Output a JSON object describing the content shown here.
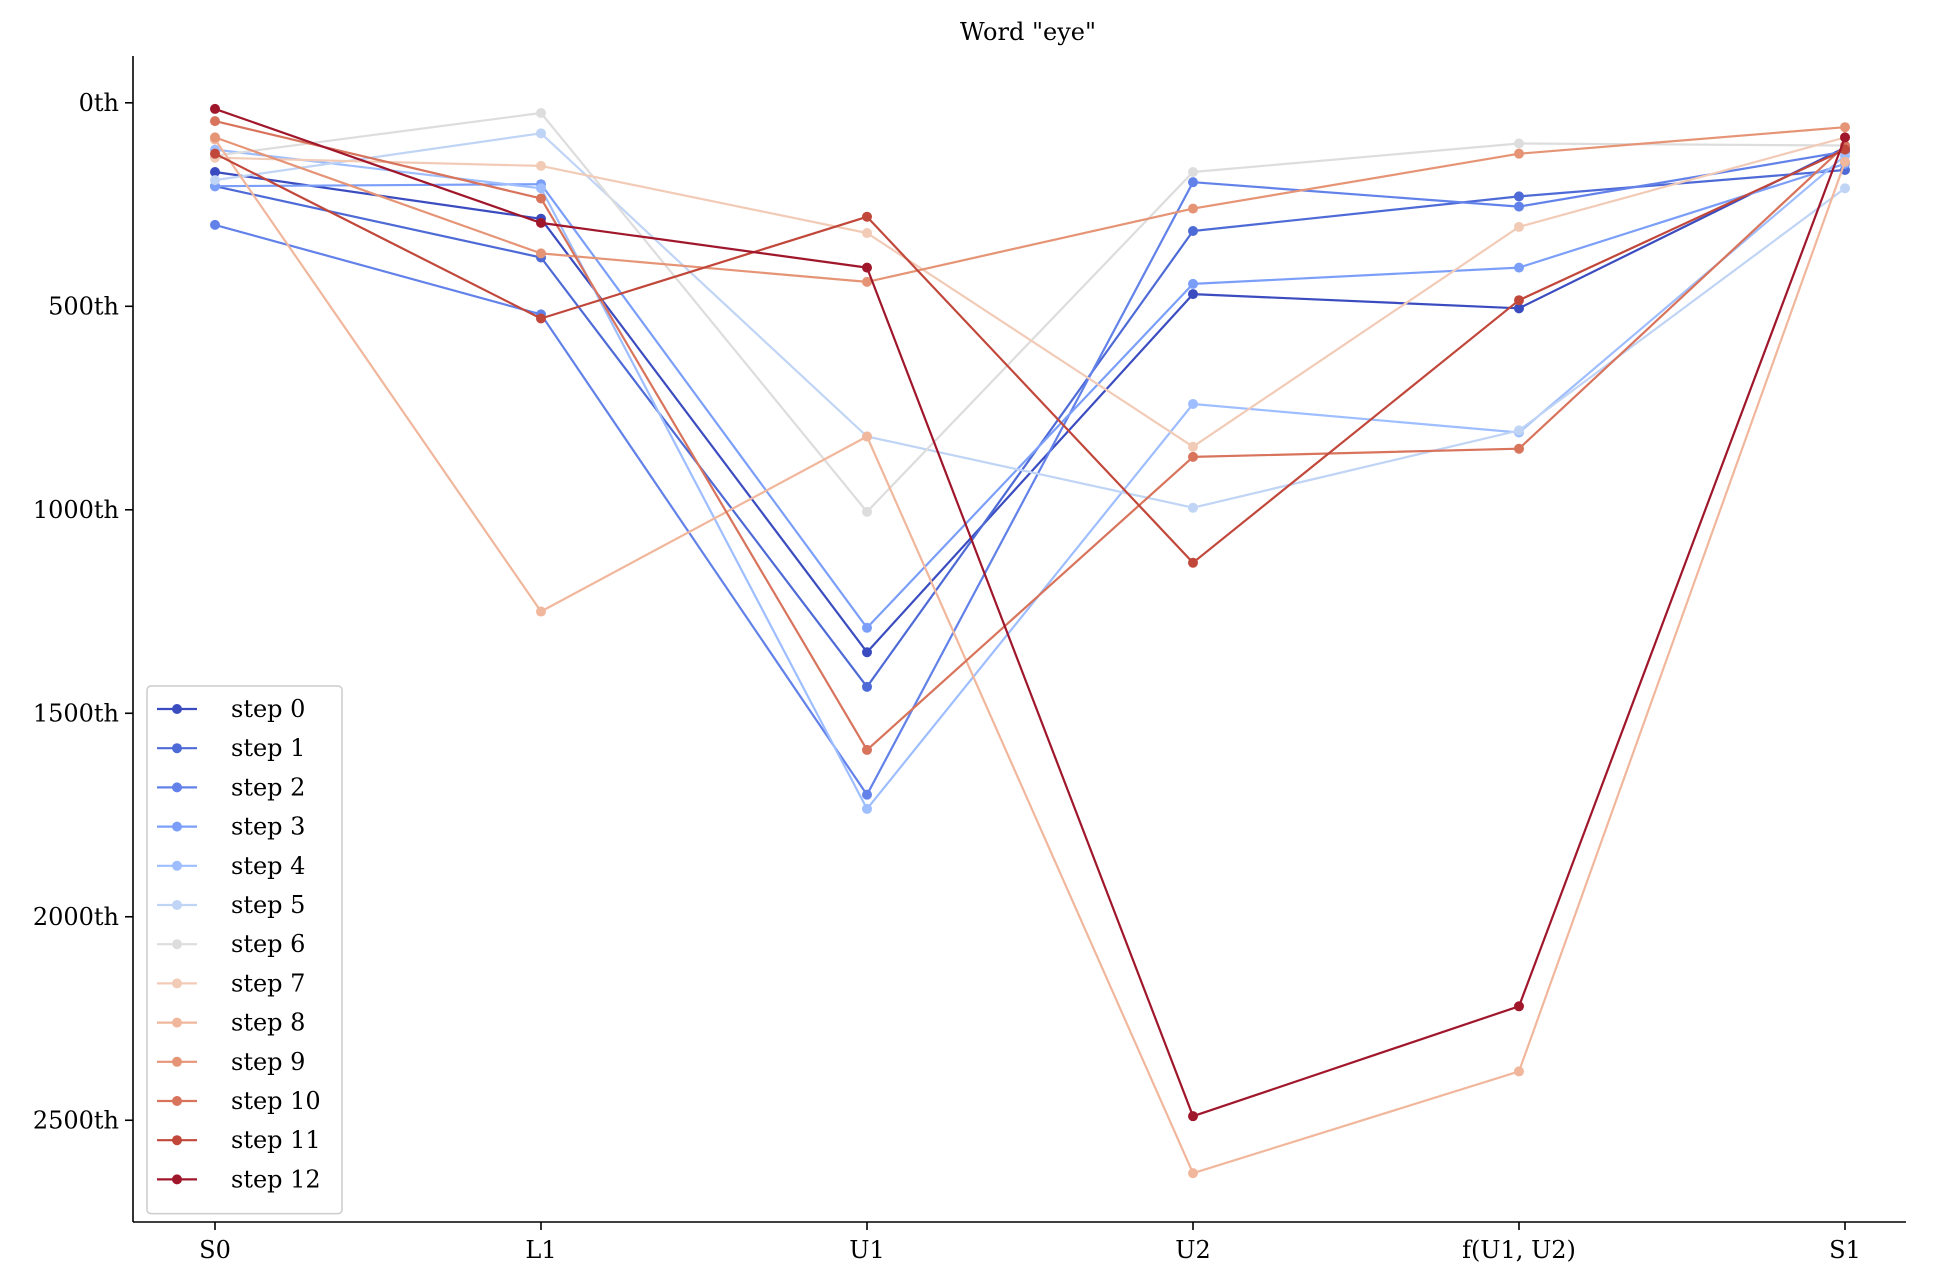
{
  "chart_data": {
    "type": "line",
    "title": "Word \"eye\"",
    "xlabel": "",
    "ylabel": "",
    "categories": [
      "S0",
      "L1",
      "U1",
      "U2",
      "f(U1, U2)",
      "S1"
    ],
    "y_ticks": [
      0,
      500,
      1000,
      1500,
      2000,
      2500
    ],
    "y_tick_labels": [
      "0th",
      "500th",
      "1000th",
      "1500th",
      "2000th",
      "2500th"
    ],
    "ylim": [
      -115,
      2750
    ],
    "y_inverted": true,
    "grid": false,
    "legend_position": "lower-left",
    "series": [
      {
        "name": "step 0",
        "color": "#3b4cc0",
        "values": [
          170,
          285,
          1350,
          470,
          505,
          110
        ]
      },
      {
        "name": "step 1",
        "color": "#4e6ad6",
        "values": [
          205,
          380,
          1435,
          315,
          230,
          165
        ]
      },
      {
        "name": "step 2",
        "color": "#6282ea",
        "values": [
          300,
          520,
          1700,
          195,
          255,
          120
        ]
      },
      {
        "name": "step 3",
        "color": "#7b9ff9",
        "values": [
          205,
          200,
          1290,
          445,
          405,
          150
        ]
      },
      {
        "name": "step 4",
        "color": "#9ebeff",
        "values": [
          115,
          210,
          1735,
          740,
          810,
          130
        ]
      },
      {
        "name": "step 5",
        "color": "#c0d4f5",
        "values": [
          190,
          75,
          820,
          995,
          805,
          210
        ]
      },
      {
        "name": "step 6",
        "color": "#dddddd",
        "values": [
          130,
          25,
          1005,
          170,
          100,
          105
        ]
      },
      {
        "name": "step 7",
        "color": "#f2cbb7",
        "values": [
          135,
          155,
          320,
          845,
          305,
          85
        ]
      },
      {
        "name": "step 8",
        "color": "#f1b79c",
        "values": [
          90,
          1250,
          820,
          2630,
          2380,
          145
        ]
      },
      {
        "name": "step 9",
        "color": "#e69476",
        "values": [
          85,
          370,
          440,
          260,
          125,
          60
        ]
      },
      {
        "name": "step 10",
        "color": "#d8735c",
        "values": [
          45,
          235,
          1590,
          870,
          850,
          105
        ]
      },
      {
        "name": "step 11",
        "color": "#c1473a",
        "values": [
          125,
          530,
          280,
          1130,
          485,
          115
        ]
      },
      {
        "name": "step 12",
        "color": "#a0172c",
        "values": [
          15,
          295,
          405,
          2490,
          2220,
          85
        ]
      }
    ]
  }
}
